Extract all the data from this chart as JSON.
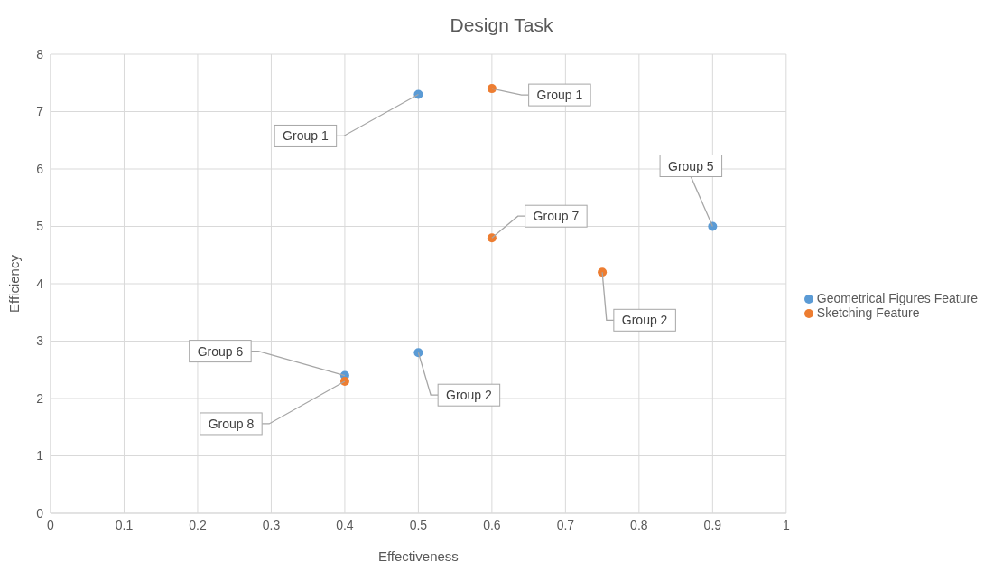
{
  "chart_data": {
    "type": "scatter",
    "title": "Design Task",
    "xlabel": "Effectiveness",
    "ylabel": "Efficiency",
    "series": [
      {
        "name": "Geometrical Figures Feature",
        "color": "#5b9bd5",
        "x": [
          0.5,
          0.9,
          0.4,
          0.5
        ],
        "values": [
          7.3,
          5.0,
          2.4,
          2.8
        ]
      },
      {
        "name": "Sketching Feature",
        "color": "#ed7d31",
        "x": [
          0.6,
          0.6,
          0.75,
          0.4
        ],
        "values": [
          7.4,
          4.8,
          4.2,
          2.3
        ]
      }
    ],
    "annotations": [
      {
        "text": "Group 1",
        "x": 0.5,
        "y": 7.3
      },
      {
        "text": "Group 5",
        "x": 0.9,
        "y": 5.0
      },
      {
        "text": "Group 6",
        "x": 0.4,
        "y": 2.4
      },
      {
        "text": "Group 2",
        "x": 0.5,
        "y": 2.8
      },
      {
        "text": "Group 1",
        "x": 0.6,
        "y": 7.4
      },
      {
        "text": "Group 7",
        "x": 0.6,
        "y": 4.8
      },
      {
        "text": "Group 2",
        "x": 0.75,
        "y": 4.2
      },
      {
        "text": "Group 8",
        "x": 0.4,
        "y": 2.3
      }
    ],
    "xlim": [
      0,
      1
    ],
    "xticks": [
      0,
      0.1,
      0.2,
      0.3,
      0.4,
      0.5,
      0.6,
      0.7,
      0.8,
      0.9,
      1
    ],
    "ylim": [
      0,
      8
    ],
    "yticks": [
      0,
      1,
      2,
      3,
      4,
      5,
      6,
      7,
      8
    ],
    "grid": true,
    "legend": "right",
    "marker": "circle"
  }
}
